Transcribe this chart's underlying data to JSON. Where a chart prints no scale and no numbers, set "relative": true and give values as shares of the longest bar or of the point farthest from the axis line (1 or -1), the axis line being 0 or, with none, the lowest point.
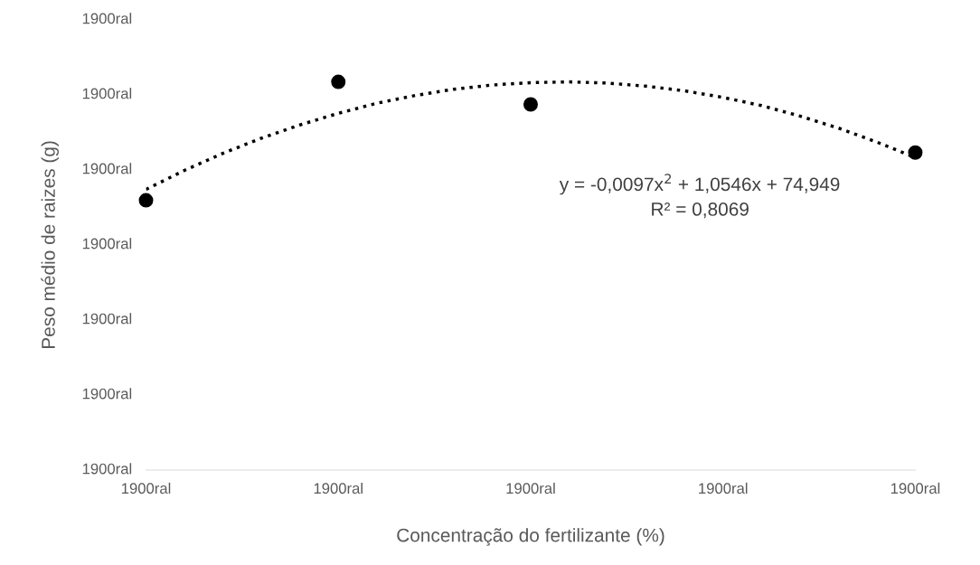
{
  "chart_data": {
    "type": "scatter",
    "relative": true,
    "xlabel": "Concentração do fertilizante (%)",
    "ylabel": "Peso médio de raizes (g)",
    "categories": [
      "1900ral",
      null,
      null,
      null,
      null,
      "1900ral",
      null,
      null,
      null,
      null,
      "1900ral",
      null,
      null,
      null,
      null,
      "1900ral",
      null,
      null,
      null,
      null,
      "1900ral"
    ],
    "grid": false,
    "marker": "circle",
    "series": [
      {
        "color": "#000000",
        "values": [
          0.695,
          null,
          null,
          null,
          null,
          1,
          null,
          null,
          null,
          null,
          0.942,
          null,
          null,
          null,
          null,
          null,
          null,
          null,
          null,
          null,
          0.818
        ]
      },
      {
        "type": "line",
        "color": "#000000",
        "line_style": "dotted",
        "marker": "none",
        "values": [
          0.723,
          0.772,
          0.816,
          0.855,
          0.889,
          0.919,
          0.945,
          0.965,
          0.981,
          0.992,
          0.998,
          1,
          0.997,
          0.989,
          0.977,
          0.96,
          0.939,
          0.912,
          0.881,
          0.845,
          0.805
        ]
      }
    ],
    "annotations": [
      "y = -0,0097x$^{2}$ + 1,0546x + 74,949",
      "R² = 0,8069",
      "1900ral",
      "1900ral",
      "1900ral",
      "1900ral",
      "1900ral",
      "1900ral",
      "1900ral"
    ]
  }
}
